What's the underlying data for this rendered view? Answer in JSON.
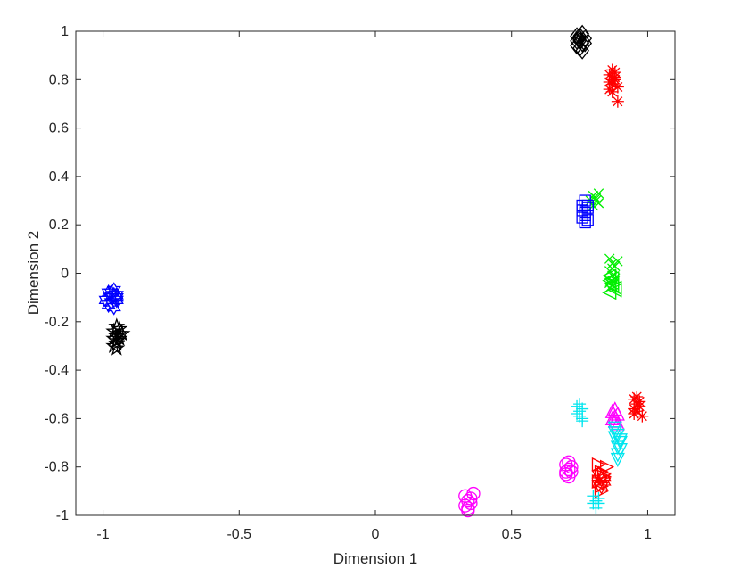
{
  "chart_data": {
    "type": "scatter",
    "title": "",
    "xlabel": "Dimension 1",
    "ylabel": "Dimension 2",
    "xlim": [
      -1.1,
      1.1
    ],
    "ylim": [
      -1,
      1
    ],
    "xticks": [
      "-1",
      "-0.5",
      "0",
      "0.5",
      "1"
    ],
    "xtick_values": [
      -1,
      -0.5,
      0,
      0.5,
      1
    ],
    "yticks": [
      "-1",
      "-0.8",
      "-0.6",
      "-0.4",
      "-0.2",
      "0",
      "0.2",
      "0.4",
      "0.6",
      "0.8",
      "1"
    ],
    "ytick_values": [
      -1,
      -0.8,
      -0.6,
      -0.4,
      -0.2,
      0,
      0.2,
      0.4,
      0.6,
      0.8,
      1
    ],
    "grid": false,
    "legend": false,
    "series": [
      {
        "marker": "diamond",
        "color": "#000000",
        "x": [
          0.75,
          0.76,
          0.74,
          0.77,
          0.75,
          0.76,
          0.74,
          0.75,
          0.77,
          0.76,
          0.75,
          0.74
        ],
        "y": [
          0.98,
          0.95,
          0.96,
          0.97,
          0.93,
          0.99,
          0.94,
          0.96,
          0.95,
          0.92,
          0.97,
          0.98
        ]
      },
      {
        "marker": "asterisk",
        "color": "#ff0000",
        "x": [
          0.86,
          0.87,
          0.88,
          0.86,
          0.87,
          0.89,
          0.88,
          0.86,
          0.87,
          0.88,
          0.89,
          0.87
        ],
        "y": [
          0.82,
          0.78,
          0.8,
          0.76,
          0.84,
          0.77,
          0.81,
          0.79,
          0.75,
          0.83,
          0.71,
          0.8
        ]
      },
      {
        "marker": "x",
        "color": "#00ee00",
        "x": [
          0.8,
          0.81,
          0.82,
          0.8,
          0.81,
          0.82,
          0.79
        ],
        "y": [
          0.32,
          0.3,
          0.33,
          0.28,
          0.31,
          0.29,
          0.3
        ]
      },
      {
        "marker": "square",
        "color": "#0000ff",
        "x": [
          0.76,
          0.77,
          0.78,
          0.76,
          0.77,
          0.78,
          0.76,
          0.77,
          0.78,
          0.77
        ],
        "y": [
          0.28,
          0.25,
          0.27,
          0.23,
          0.3,
          0.22,
          0.26,
          0.24,
          0.28,
          0.21
        ]
      },
      {
        "marker": "x",
        "color": "#00ee00",
        "x": [
          0.86,
          0.87,
          0.88,
          0.86,
          0.87,
          0.88,
          0.86,
          0.87,
          0.88,
          0.87,
          0.86,
          0.89
        ],
        "y": [
          0.06,
          0.04,
          0.03,
          0.01,
          -0.01,
          -0.02,
          -0.04,
          -0.05,
          -0.03,
          0.02,
          -0.06,
          0.05
        ]
      },
      {
        "marker": "triangle-left",
        "color": "#00ee00",
        "x": [
          0.86,
          0.87,
          0.88,
          0.86,
          0.87,
          0.88,
          0.86,
          0.87
        ],
        "y": [
          -0.03,
          -0.05,
          -0.07,
          -0.08,
          -0.04,
          -0.06,
          -0.01,
          -0.02
        ]
      },
      {
        "marker": "hexagram",
        "color": "#0000ff",
        "x": [
          -0.98,
          -0.97,
          -0.96,
          -0.95,
          -0.97,
          -0.96,
          -0.98,
          -0.95,
          -0.96,
          -0.97,
          -0.95,
          -0.99
        ],
        "y": [
          -0.08,
          -0.1,
          -0.09,
          -0.11,
          -0.12,
          -0.07,
          -0.13,
          -0.1,
          -0.14,
          -0.08,
          -0.09,
          -0.11
        ]
      },
      {
        "marker": "pentagram",
        "color": "#000000",
        "x": [
          -0.96,
          -0.95,
          -0.94,
          -0.95,
          -0.96,
          -0.94,
          -0.95,
          -0.93,
          -0.96,
          -0.94,
          -0.95,
          -0.95
        ],
        "y": [
          -0.24,
          -0.26,
          -0.25,
          -0.28,
          -0.27,
          -0.23,
          -0.29,
          -0.25,
          -0.3,
          -0.27,
          -0.22,
          -0.31
        ]
      },
      {
        "marker": "plus",
        "color": "#00e5ee",
        "x": [
          0.75,
          0.76,
          0.74,
          0.76,
          0.75,
          0.74,
          0.76,
          0.75
        ],
        "y": [
          -0.54,
          -0.56,
          -0.58,
          -0.6,
          -0.57,
          -0.55,
          -0.61,
          -0.59
        ]
      },
      {
        "marker": "triangle-up",
        "color": "#ff00ff",
        "x": [
          0.87,
          0.88,
          0.89,
          0.88,
          0.87,
          0.89,
          0.88
        ],
        "y": [
          -0.57,
          -0.59,
          -0.58,
          -0.61,
          -0.6,
          -0.62,
          -0.56
        ]
      },
      {
        "marker": "asterisk",
        "color": "#ff0000",
        "x": [
          0.95,
          0.96,
          0.97,
          0.95,
          0.96,
          0.97,
          0.96,
          0.98,
          0.95
        ],
        "y": [
          -0.52,
          -0.54,
          -0.53,
          -0.56,
          -0.57,
          -0.55,
          -0.51,
          -0.59,
          -0.58
        ]
      },
      {
        "marker": "triangle-down",
        "color": "#00e5ee",
        "x": [
          0.88,
          0.89,
          0.9,
          0.89,
          0.88,
          0.9,
          0.89,
          0.9,
          0.88,
          0.89
        ],
        "y": [
          -0.64,
          -0.67,
          -0.7,
          -0.72,
          -0.66,
          -0.69,
          -0.75,
          -0.73,
          -0.68,
          -0.77
        ]
      },
      {
        "marker": "circle",
        "color": "#ff00ff",
        "x": [
          0.7,
          0.71,
          0.72,
          0.7,
          0.71,
          0.72,
          0.71,
          0.7
        ],
        "y": [
          -0.79,
          -0.81,
          -0.8,
          -0.83,
          -0.84,
          -0.82,
          -0.78,
          -0.82
        ]
      },
      {
        "marker": "triangle-right",
        "color": "#ff0000",
        "x": [
          0.82,
          0.83,
          0.84,
          0.82,
          0.83,
          0.84,
          0.83,
          0.85
        ],
        "y": [
          -0.79,
          -0.82,
          -0.84,
          -0.86,
          -0.88,
          -0.83,
          -0.9,
          -0.8
        ]
      },
      {
        "marker": "hexagram",
        "color": "#ff0000",
        "x": [
          0.82,
          0.83,
          0.84,
          0.83,
          0.82,
          0.84
        ],
        "y": [
          -0.83,
          -0.85,
          -0.86,
          -0.88,
          -0.87,
          -0.84
        ]
      },
      {
        "marker": "plus",
        "color": "#00e5ee",
        "x": [
          0.8,
          0.81,
          0.82,
          0.81,
          0.8,
          0.82
        ],
        "y": [
          -0.92,
          -0.94,
          -0.95,
          -0.97,
          -0.95,
          -0.93
        ]
      },
      {
        "marker": "circle",
        "color": "#ff00ff",
        "x": [
          0.33,
          0.34,
          0.35,
          0.34,
          0.33,
          0.35,
          0.34,
          0.36
        ],
        "y": [
          -0.92,
          -0.94,
          -0.95,
          -0.97,
          -0.96,
          -0.93,
          -0.98,
          -0.91
        ]
      }
    ]
  }
}
